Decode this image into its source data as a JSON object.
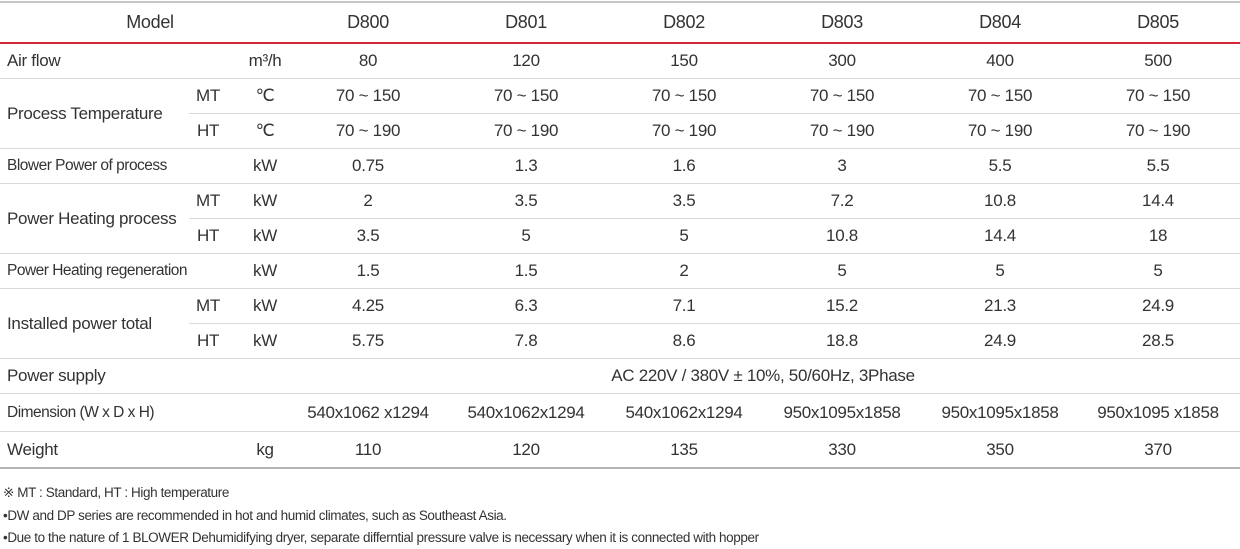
{
  "header": {
    "model_label": "Model",
    "models": [
      "D800",
      "D801",
      "D802",
      "D803",
      "D804",
      "D805"
    ]
  },
  "rows": {
    "air_flow": {
      "label": "Air flow",
      "unit": "m³/h",
      "values": [
        "80",
        "120",
        "150",
        "300",
        "400",
        "500"
      ]
    },
    "process_temperature": {
      "label": "Process Temperature",
      "mt": {
        "sub": "MT",
        "unit": "℃",
        "values": [
          "70 ~ 150",
          "70 ~ 150",
          "70 ~ 150",
          "70 ~ 150",
          "70 ~ 150",
          "70 ~ 150"
        ]
      },
      "ht": {
        "sub": "HT",
        "unit": "℃",
        "values": [
          "70 ~ 190",
          "70 ~ 190",
          "70 ~ 190",
          "70 ~ 190",
          "70 ~ 190",
          "70 ~ 190"
        ]
      }
    },
    "blower_power": {
      "label": "Blower Power of process",
      "unit": "kW",
      "values": [
        "0.75",
        "1.3",
        "1.6",
        "3",
        "5.5",
        "5.5"
      ]
    },
    "power_heating_process": {
      "label": "Power Heating process",
      "mt": {
        "sub": "MT",
        "unit": "kW",
        "values": [
          "2",
          "3.5",
          "3.5",
          "7.2",
          "10.8",
          "14.4"
        ]
      },
      "ht": {
        "sub": "HT",
        "unit": "kW",
        "values": [
          "3.5",
          "5",
          "5",
          "10.8",
          "14.4",
          "18"
        ]
      }
    },
    "power_heating_regeneration": {
      "label": "Power Heating regeneration",
      "unit": "kW",
      "values": [
        "1.5",
        "1.5",
        "2",
        "5",
        "5",
        "5"
      ]
    },
    "installed_power_total": {
      "label": "Installed power total",
      "mt": {
        "sub": "MT",
        "unit": "kW",
        "values": [
          "4.25",
          "6.3",
          "7.1",
          "15.2",
          "21.3",
          "24.9"
        ]
      },
      "ht": {
        "sub": "HT",
        "unit": "kW",
        "values": [
          "5.75",
          "7.8",
          "8.6",
          "18.8",
          "24.9",
          "28.5"
        ]
      }
    },
    "power_supply": {
      "label": "Power supply",
      "value": "AC 220V / 380V ± 10%, 50/60Hz, 3Phase"
    },
    "dimension": {
      "label": "Dimension  (W x D x H)",
      "values": [
        "540x1062 x1294",
        "540x1062x1294",
        "540x1062x1294",
        "950x1095x1858",
        "950x1095x1858",
        "950x1095 x1858"
      ]
    },
    "weight": {
      "label": "Weight",
      "unit": "kg",
      "values": [
        "110",
        "120",
        "135",
        "330",
        "350",
        "370"
      ]
    }
  },
  "notes": [
    "※  MT : Standard,   HT : High temperature",
    "•DW and DP series are recommended in hot and humid climates, such as Southeast Asia.",
    "•Due to the nature of 1 BLOWER Dehumidifying dryer, separate differntial pressure valve is necessary when it is connected with hopper"
  ],
  "colors": {
    "accent_line": "#d6253a",
    "text": "#333333",
    "rule": "#d9d9d9"
  }
}
